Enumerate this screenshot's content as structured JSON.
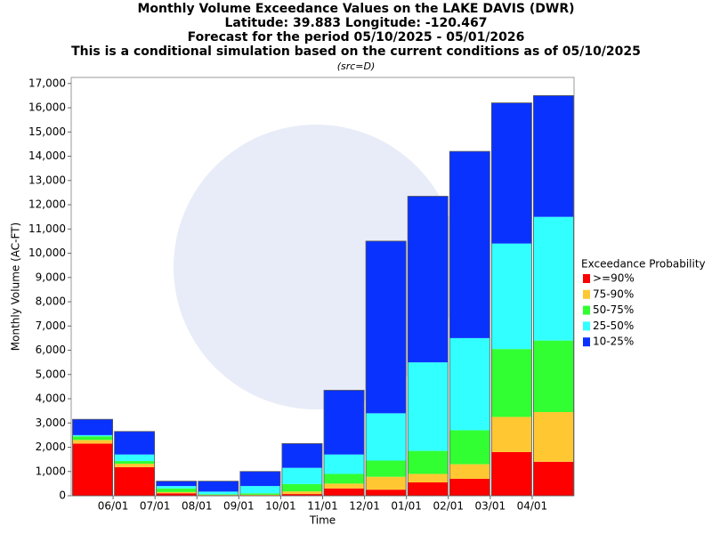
{
  "chart_data": {
    "type": "stacked_bar",
    "title": [
      "Monthly Volume Exceedance Values on the LAKE DAVIS (DWR)",
      "Latitude: 39.883 Longitude: -120.467",
      "Forecast for the period 05/10/2025 - 05/01/2026",
      "This is a conditional simulation based on the current conditions as of 05/10/2025"
    ],
    "subtitle": "(src=D)",
    "x_label": "Time",
    "y_label": "Monthly Volume (AC-FT)",
    "legend_title": "Exceedance Probability",
    "categories": [
      null,
      "06/01",
      "07/01",
      "08/01",
      "09/01",
      "10/01",
      "11/01",
      "12/01",
      "01/01",
      "02/01",
      "03/01",
      "04/01"
    ],
    "series": [
      {
        "name": ">=90%",
        "color": "#ff0000",
        "values": [
          2150,
          1180,
          100,
          20,
          20,
          70,
          300,
          250,
          550,
          700,
          1800,
          1400
        ]
      },
      {
        "name": "75-90%",
        "color": "#ffc832",
        "values": [
          150,
          140,
          50,
          10,
          20,
          110,
          200,
          530,
          350,
          600,
          1450,
          2050
        ]
      },
      {
        "name": "50-75%",
        "color": "#32ff32",
        "values": [
          150,
          110,
          150,
          30,
          60,
          300,
          400,
          670,
          950,
          1400,
          2800,
          2950
        ]
      },
      {
        "name": "25-50%",
        "color": "#32ffff",
        "values": [
          50,
          270,
          100,
          110,
          300,
          670,
          800,
          1950,
          3650,
          3800,
          4350,
          5100
        ]
      },
      {
        "name": "10-25%",
        "color": "#0a32ff",
        "values": [
          650,
          950,
          200,
          430,
          600,
          1000,
          2650,
          7100,
          6850,
          7700,
          5800,
          5000
        ]
      }
    ],
    "ylim": [
      0,
      17250
    ],
    "yticks": [
      0,
      {
        "value": 1000,
        "label": "1,000"
      },
      {
        "value": 2000,
        "label": "2,000"
      },
      {
        "value": 3000,
        "label": "3,000"
      },
      {
        "value": 4000,
        "label": "4,000"
      },
      {
        "value": 5000,
        "label": "5,000"
      },
      {
        "value": 6000,
        "label": "6,000"
      },
      {
        "value": 7000,
        "label": "7,000"
      },
      {
        "value": 8000,
        "label": "8,000"
      },
      {
        "value": 9000,
        "label": "9,000"
      },
      {
        "value": 10000,
        "label": "10,000"
      },
      {
        "value": 11000,
        "label": "11,000"
      },
      {
        "value": 12000,
        "label": "12,000"
      },
      {
        "value": 13000,
        "label": "13,000"
      },
      {
        "value": 14000,
        "label": "14,000"
      },
      {
        "value": 15000,
        "label": "15,000"
      },
      {
        "value": 16000,
        "label": "16,000"
      },
      {
        "value": 17000,
        "label": "17,000"
      }
    ],
    "legend_position": "right"
  }
}
